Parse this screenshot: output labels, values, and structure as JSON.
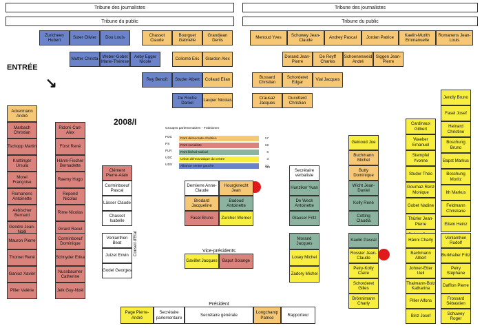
{
  "header": {
    "press_gallery": "Tribune des journalistes",
    "public_gallery": "Tribune du public"
  },
  "labels": {
    "entree": "ENTRÉE",
    "session": "2008/I",
    "chancellerie": "Conseil d'Etat",
    "vice_presidents": "Vice-présidents",
    "president": "Président"
  },
  "legend": {
    "title": "Groupes parlementaires - Fraktionen",
    "items": [
      {
        "code": "PDC",
        "text": "Parti démocrate-chrétien",
        "count": "17",
        "color": "#f6c774"
      },
      {
        "code": "PS",
        "text": "Parti socialiste",
        "count": "19",
        "color": "#d9837c"
      },
      {
        "code": "PLR",
        "text": "Parti libéral-radical",
        "count": "6",
        "color": "#8bb39f"
      },
      {
        "code": "UDC",
        "text": "Union démocratique du centre",
        "count": "3",
        "color": "#f7ee3f"
      },
      {
        "code": "UDS",
        "text": "Alliance centre gauche",
        "count": "10",
        "color": "#6b84c9"
      }
    ]
  },
  "numbers": {
    "n1": "1",
    "n2": "110"
  },
  "seats": [
    {
      "name": "Zuricheen Hubert",
      "color": "blue"
    },
    {
      "name": "Suter Olivier",
      "color": "blue"
    },
    {
      "name": "Dou Louis",
      "color": "blue"
    },
    {
      "name": "Chassot Claude",
      "color": "orange"
    },
    {
      "name": "Bourguet Gabrielle",
      "color": "orange"
    },
    {
      "name": "Grandjean Denis",
      "color": "orange"
    },
    {
      "name": "Mutter Christa",
      "color": "blue"
    },
    {
      "name": "Weber-Gobet Marie-Thérèse",
      "color": "blue"
    },
    {
      "name": "Aeby Egger Nicole",
      "color": "blue"
    },
    {
      "name": "Collomb Eric",
      "color": "orange"
    },
    {
      "name": "Glardon Alex",
      "color": "orange"
    },
    {
      "name": "Rey Benoît",
      "color": "blue"
    },
    {
      "name": "Studer Albert",
      "color": "blue"
    },
    {
      "name": "Collaud Elian",
      "color": "orange"
    },
    {
      "name": "De Roche Daniel",
      "color": "blue"
    },
    {
      "name": "Lauper Nicolas",
      "color": "orange"
    },
    {
      "name": "Menoud Yves",
      "color": "orange"
    },
    {
      "name": "Schuwey Jean-Claude",
      "color": "orange"
    },
    {
      "name": "Andrey Pascal",
      "color": "orange"
    },
    {
      "name": "Jordan Patrice",
      "color": "orange"
    },
    {
      "name": "Kaelin-Murith Emmanuelle",
      "color": "orange"
    },
    {
      "name": "Romanens Jean-Louis",
      "color": "orange"
    },
    {
      "name": "Dorand Jean-Pierre",
      "color": "orange"
    },
    {
      "name": "De Reyff Charles",
      "color": "orange"
    },
    {
      "name": "Schoenenweid André",
      "color": "orange"
    },
    {
      "name": "Siggen Jean-Pierre",
      "color": "orange"
    },
    {
      "name": "Bussard Christian",
      "color": "orange"
    },
    {
      "name": "Schorderet Edgar",
      "color": "orange"
    },
    {
      "name": "Vial Jacques",
      "color": "orange"
    },
    {
      "name": "Crausaz Jacques",
      "color": "orange"
    },
    {
      "name": "Ducotterd Christian",
      "color": "orange"
    },
    {
      "name": "Ackermann André",
      "color": "orange"
    },
    {
      "name": "Marbach Christian",
      "color": "red"
    },
    {
      "name": "Tschopp Martin",
      "color": "red"
    },
    {
      "name": "Krattinger Ursula",
      "color": "red"
    },
    {
      "name": "Morel Françoise",
      "color": "red"
    },
    {
      "name": "Romanens Antoinette",
      "color": "red"
    },
    {
      "name": "Aebischer Bernard",
      "color": "red"
    },
    {
      "name": "Gendre Jean-Noël",
      "color": "red"
    },
    {
      "name": "Ridoré Carl-Alex",
      "color": "red"
    },
    {
      "name": "Fürst René",
      "color": "red"
    },
    {
      "name": "Hänni-Fischer Bernadette",
      "color": "red"
    },
    {
      "name": "Raemy Hugo",
      "color": "red"
    },
    {
      "name": "Repond Nicolas",
      "color": "red"
    },
    {
      "name": "Rime Nicolas",
      "color": "red"
    },
    {
      "name": "Girard Raoul",
      "color": "red"
    },
    {
      "name": "Mauron Pierre",
      "color": "red"
    },
    {
      "name": "Thomet René",
      "color": "red"
    },
    {
      "name": "Ganioz Xavier",
      "color": "red"
    },
    {
      "name": "Piller Valérie",
      "color": "red"
    },
    {
      "name": "Corminboeuf Dominique",
      "color": "red"
    },
    {
      "name": "Schnyder Erika",
      "color": "red"
    },
    {
      "name": "Nussbaumer Catherine",
      "color": "red"
    },
    {
      "name": "Jelk Guy-Noël",
      "color": "red"
    },
    {
      "name": "Clément Pierre-Alain",
      "color": "red"
    },
    {
      "name": "Corminboeuf Pascal",
      "color": "white"
    },
    {
      "name": "Lässer Claude",
      "color": "white"
    },
    {
      "name": "Chassot Isabelle",
      "color": "white"
    },
    {
      "name": "Vonlanthen Beat",
      "color": "white"
    },
    {
      "name": "Jutzet Erwin",
      "color": "white"
    },
    {
      "name": "Godel Georges",
      "color": "white"
    },
    {
      "name": "Demierre Anne-Claude",
      "color": "white"
    },
    {
      "name": "Hourgknecht Jean",
      "color": "orange"
    },
    {
      "name": "Brodard Jacqueline",
      "color": "orange"
    },
    {
      "name": "Badoud Antoinette",
      "color": "green"
    },
    {
      "name": "Fasel Bruno",
      "color": "red"
    },
    {
      "name": "Zurcher Werner",
      "color": "yellow"
    },
    {
      "name": "Gavillet Jacques",
      "color": "yellow"
    },
    {
      "name": "Bapst Solange",
      "color": "red"
    },
    {
      "name": "Page Pierre-André",
      "color": "yellow"
    },
    {
      "name": "Secrétaire parlementaire",
      "color": "white"
    },
    {
      "name": "Secrétaire générale",
      "color": "white"
    },
    {
      "name": "Longchamp Patrice",
      "color": "orange"
    },
    {
      "name": "Rapporteur",
      "color": "white"
    },
    {
      "name": "Secrétaire verbaliste",
      "color": "white"
    },
    {
      "name": "Hunziker Yvan",
      "color": "green"
    },
    {
      "name": "De Weck Antoinette",
      "color": "green"
    },
    {
      "name": "Glauser Fritz",
      "color": "green"
    },
    {
      "name": "Morand Jacques",
      "color": "green"
    },
    {
      "name": "Losey Michel",
      "color": "yellow"
    },
    {
      "name": "Zadory Michel",
      "color": "yellow"
    },
    {
      "name": "Geinoud Joe",
      "color": "yellow"
    },
    {
      "name": "Buchmann Michel",
      "color": "orange"
    },
    {
      "name": "Butty Dominique",
      "color": "orange"
    },
    {
      "name": "Wicht Jean-Daniel",
      "color": "green"
    },
    {
      "name": "Kolly René",
      "color": "green"
    },
    {
      "name": "Cotting Claudia",
      "color": "green"
    },
    {
      "name": "Kaelin Pascal",
      "color": "green"
    },
    {
      "name": "Rossier Jean-Claude",
      "color": "yellow"
    },
    {
      "name": "Peiry-Kolly Claire",
      "color": "yellow"
    },
    {
      "name": "Schorderet Gilles",
      "color": "yellow"
    },
    {
      "name": "Brönnimann Charly",
      "color": "yellow"
    },
    {
      "name": "Cardinaux Gilbert",
      "color": "yellow"
    },
    {
      "name": "Waeber Emanuel",
      "color": "yellow"
    },
    {
      "name": "Stempfel Yvonne",
      "color": "yellow"
    },
    {
      "name": "Studer Théo",
      "color": "yellow"
    },
    {
      "name": "Goumaz-Renz Monique",
      "color": "yellow"
    },
    {
      "name": "Gobet Nadine",
      "color": "yellow"
    },
    {
      "name": "Thürler Jean-Pierre",
      "color": "yellow"
    },
    {
      "name": "Geinoz Jean-Denis",
      "color": "yellow"
    },
    {
      "name": "Hänni Charly",
      "color": "yellow"
    },
    {
      "name": "Bachmann Albert",
      "color": "yellow"
    },
    {
      "name": "Johner-Etter Ueli",
      "color": "yellow"
    },
    {
      "name": "Thalmann-Bolz Katharina",
      "color": "yellow"
    },
    {
      "name": "Piller Alfons",
      "color": "yellow"
    },
    {
      "name": "Binz Josef",
      "color": "yellow"
    },
    {
      "name": "Jendly Bruno",
      "color": "yellow"
    },
    {
      "name": "Fasel Josef",
      "color": "yellow"
    },
    {
      "name": "Heinard Christine",
      "color": "yellow"
    },
    {
      "name": "Boschung Bruno",
      "color": "yellow"
    },
    {
      "name": "Bapst Markus",
      "color": "yellow"
    },
    {
      "name": "Boschung Moritz",
      "color": "yellow"
    },
    {
      "name": "Ith Markus",
      "color": "yellow"
    },
    {
      "name": "Feldmann Christiane",
      "color": "yellow"
    },
    {
      "name": "Ettein Heinz",
      "color": "yellow"
    },
    {
      "name": "Vonlanthen Rudolf",
      "color": "yellow"
    },
    {
      "name": "Burkhalter Fritz",
      "color": "yellow"
    },
    {
      "name": "Peiry Stéphane",
      "color": "yellow"
    },
    {
      "name": "Dafflon Pierre",
      "color": "yellow"
    },
    {
      "name": "Frossard Sébastien",
      "color": "yellow"
    },
    {
      "name": "Schuwey Roger",
      "color": "yellow"
    }
  ]
}
